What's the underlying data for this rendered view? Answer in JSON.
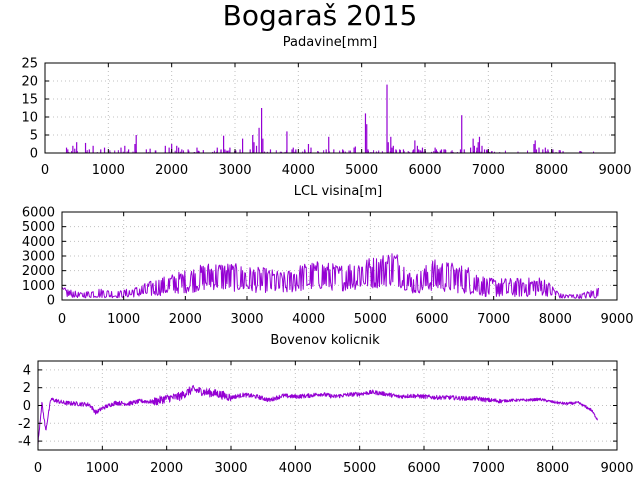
{
  "title": "Bogaraš 2015",
  "series_color": "#9400d3",
  "chart_data": [
    {
      "type": "bar",
      "title": "Padavine[mm]",
      "xlim": [
        0,
        9000
      ],
      "ylim": [
        0,
        25
      ],
      "xticks": [
        0,
        1000,
        2000,
        3000,
        4000,
        5000,
        6000,
        7000,
        8000,
        9000
      ],
      "yticks": [
        0,
        5,
        10,
        15,
        20,
        25
      ],
      "grid": true,
      "x": [
        340,
        360,
        440,
        470,
        500,
        640,
        700,
        760,
        880,
        940,
        1200,
        1260,
        1320,
        1420,
        1440,
        1600,
        1660,
        1900,
        1960,
        2000,
        2080,
        2110,
        2160,
        2260,
        2400,
        2500,
        2720,
        2780,
        2820,
        2840,
        2920,
        3080,
        3120,
        3240,
        3280,
        3300,
        3340,
        3380,
        3420,
        3440,
        3560,
        3820,
        3900,
        3920,
        3960,
        4100,
        4160,
        4200,
        4440,
        4480,
        4560,
        4700,
        4880,
        4900,
        5060,
        5080,
        5100,
        5400,
        5420,
        5460,
        5480,
        5500,
        5540,
        5600,
        5660,
        5820,
        5840,
        5880,
        5900,
        5960,
        6000,
        6160,
        6180,
        6260,
        6300,
        6320,
        6560,
        6580,
        6620,
        6720,
        6760,
        6780,
        6820,
        6840,
        6860,
        6900,
        6940,
        6980,
        7720,
        7740,
        7760,
        7800,
        7860,
        7900,
        7940,
        8020,
        8120,
        8180
      ],
      "values": [
        1.5,
        1.0,
        2.0,
        1.2,
        3.0,
        2.8,
        1.0,
        2.0,
        1.0,
        1.5,
        1.5,
        2.0,
        1.0,
        2.5,
        5.0,
        1.0,
        1.2,
        2.0,
        1.5,
        2.5,
        2.0,
        1.5,
        1.0,
        1.0,
        1.5,
        0.8,
        1.5,
        1.0,
        4.8,
        1.0,
        1.5,
        1.0,
        4.0,
        1.0,
        5.0,
        3.0,
        2.0,
        7.0,
        12.5,
        4.0,
        1.0,
        6.0,
        1.0,
        1.5,
        1.0,
        1.0,
        2.5,
        1.5,
        1.0,
        4.5,
        1.0,
        1.0,
        1.5,
        1.8,
        11.0,
        8.0,
        1.0,
        19.0,
        3.0,
        4.5,
        1.5,
        2.0,
        1.0,
        1.0,
        1.0,
        1.0,
        3.5,
        2.0,
        1.0,
        1.5,
        1.0,
        1.5,
        1.0,
        1.0,
        1.0,
        1.0,
        1.0,
        10.5,
        1.0,
        1.5,
        4.0,
        2.0,
        1.5,
        3.0,
        4.5,
        2.0,
        1.0,
        1.0,
        2.5,
        3.5,
        1.0,
        1.5,
        1.0,
        1.5,
        1.0,
        1.0,
        0.8,
        0.5
      ]
    },
    {
      "type": "line",
      "title": "LCL visina[m]",
      "xlim": [
        0,
        9000
      ],
      "ylim": [
        0,
        6000
      ],
      "xticks": [
        0,
        1000,
        2000,
        3000,
        4000,
        5000,
        6000,
        7000,
        8000,
        9000
      ],
      "yticks": [
        0,
        1000,
        2000,
        3000,
        4000,
        5000,
        6000
      ],
      "grid": true,
      "x": [
        0,
        300,
        600,
        900,
        1200,
        1500,
        1800,
        2100,
        2400,
        2700,
        3000,
        3300,
        3600,
        3900,
        4200,
        4500,
        4800,
        5100,
        5400,
        5700,
        6000,
        6300,
        6600,
        6900,
        7200,
        7500,
        7800,
        8100,
        8400,
        8700
      ],
      "envelope_max": [
        900,
        500,
        800,
        600,
        900,
        1400,
        1800,
        2200,
        2600,
        2600,
        2300,
        2200,
        1900,
        2500,
        2700,
        2400,
        2800,
        3000,
        3500,
        1600,
        2800,
        2600,
        2300,
        1500,
        1500,
        1500,
        1600,
        400,
        400,
        900
      ],
      "envelope_min": [
        200,
        150,
        150,
        150,
        200,
        250,
        400,
        500,
        700,
        600,
        500,
        500,
        400,
        600,
        700,
        600,
        700,
        800,
        1000,
        400,
        600,
        500,
        400,
        200,
        200,
        200,
        300,
        100,
        100,
        100
      ]
    },
    {
      "type": "line",
      "title": "Bovenov kolicnik",
      "xlim": [
        0,
        9000
      ],
      "ylim": [
        -5,
        5
      ],
      "xticks": [
        0,
        1000,
        2000,
        3000,
        4000,
        5000,
        6000,
        7000,
        8000,
        9000
      ],
      "yticks": [
        -4,
        -2,
        0,
        2,
        4
      ],
      "grid": true,
      "x": [
        0,
        60,
        120,
        200,
        400,
        600,
        800,
        900,
        1000,
        1200,
        1400,
        1600,
        1800,
        2000,
        2200,
        2400,
        2600,
        2800,
        3000,
        3200,
        3400,
        3600,
        3800,
        4000,
        4200,
        4400,
        4600,
        4800,
        5000,
        5200,
        5400,
        5600,
        5800,
        6000,
        6200,
        6400,
        6600,
        6800,
        7000,
        7200,
        7400,
        7600,
        7800,
        8000,
        8200,
        8400,
        8600,
        8700
      ],
      "values": [
        -4.2,
        0.3,
        -2.8,
        0.7,
        0.3,
        0.2,
        0.1,
        -0.8,
        -0.3,
        0.3,
        0.2,
        0.5,
        0.4,
        0.8,
        1.0,
        1.8,
        1.5,
        1.3,
        0.9,
        1.2,
        1.0,
        0.6,
        1.1,
        1.0,
        1.1,
        1.3,
        1.0,
        1.2,
        1.3,
        1.5,
        1.3,
        1.0,
        1.1,
        1.0,
        0.9,
        0.9,
        0.8,
        0.8,
        0.6,
        0.5,
        0.6,
        0.6,
        0.7,
        0.4,
        0.2,
        0.3,
        -0.5,
        -1.6
      ],
      "noise": 0.6
    }
  ]
}
